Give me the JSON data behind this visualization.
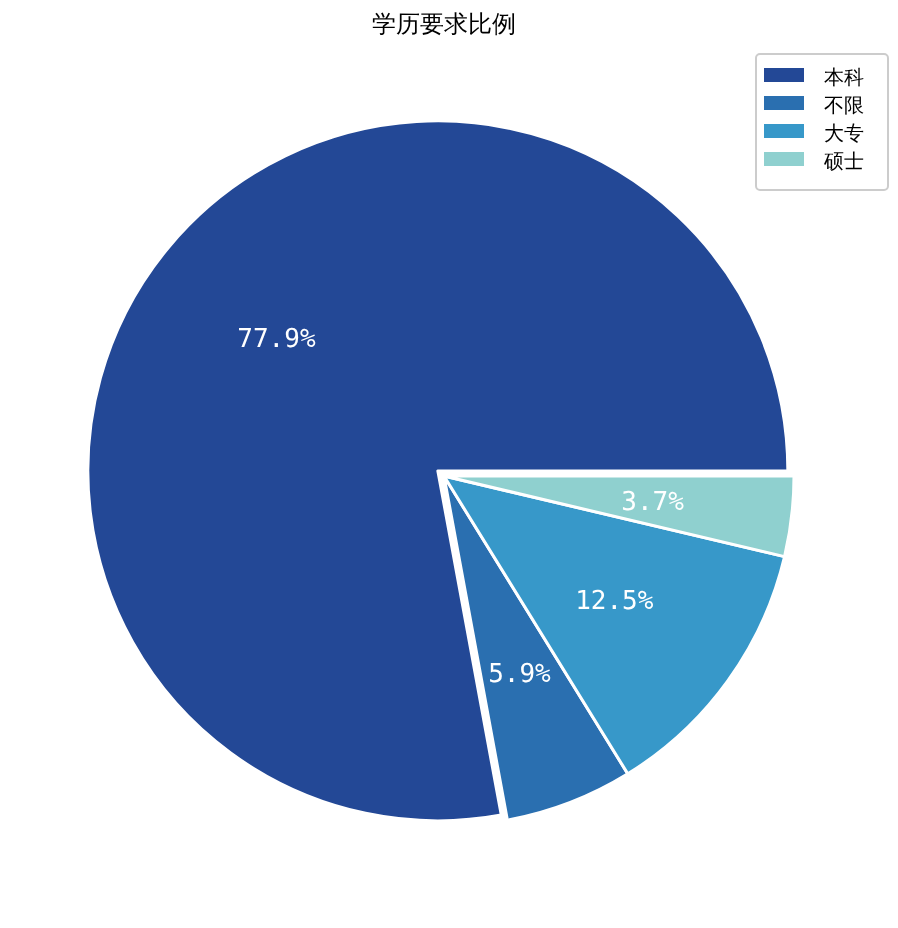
{
  "chart_data": {
    "type": "pie",
    "title": "学历要求比例",
    "categories": [
      "本科",
      "不限",
      "大专",
      "硕士"
    ],
    "values": [
      77.9,
      5.9,
      12.5,
      3.7
    ],
    "value_labels": [
      "77.9%",
      "5.9%",
      "12.5%",
      "3.7%"
    ],
    "colors": [
      "#234896",
      "#2a6fb0",
      "#3798c9",
      "#8fd0cf"
    ],
    "legend": "top right"
  }
}
